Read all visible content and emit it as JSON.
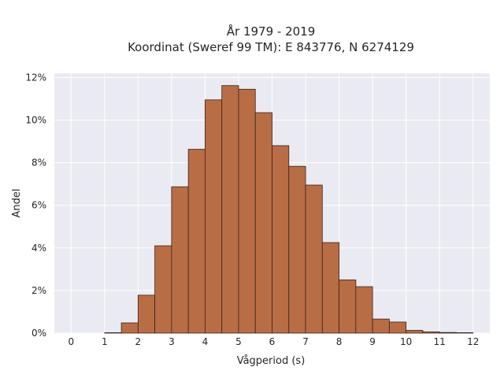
{
  "chart_data": {
    "type": "bar",
    "title": "År 1979 - 2019",
    "subtitle": "Koordinat (Sweref 99 TM): E 843776, N 6274129",
    "xlabel": "Vågperiod (s)",
    "ylabel": "Andel",
    "xlim": [
      -0.5,
      12.5
    ],
    "ylim": [
      0,
      12.2
    ],
    "x_ticks": [
      0,
      1,
      2,
      3,
      4,
      5,
      6,
      7,
      8,
      9,
      10,
      11,
      12
    ],
    "x_tick_labels": [
      "0",
      "1",
      "2",
      "3",
      "4",
      "5",
      "6",
      "7",
      "8",
      "9",
      "10",
      "11",
      "12"
    ],
    "y_ticks": [
      0,
      2,
      4,
      6,
      8,
      10,
      12
    ],
    "y_tick_labels": [
      "0%",
      "2%",
      "4%",
      "6%",
      "8%",
      "10%",
      "12%"
    ],
    "y_unit": "%",
    "grid": true,
    "bin_width": 0.5,
    "bin_starts": [
      1.0,
      1.5,
      2.0,
      2.5,
      3.0,
      3.5,
      4.0,
      4.5,
      5.0,
      5.5,
      6.0,
      6.5,
      7.0,
      7.5,
      8.0,
      8.5,
      9.0,
      9.5,
      10.0,
      10.5,
      11.0,
      11.5
    ],
    "values": [
      0.02,
      0.48,
      1.78,
      4.1,
      6.87,
      8.63,
      10.95,
      11.62,
      11.45,
      10.35,
      8.8,
      7.83,
      6.95,
      4.25,
      2.5,
      2.18,
      0.66,
      0.52,
      0.13,
      0.06,
      0.03,
      0.02
    ],
    "bar_color": "#b96d45",
    "bar_edge_color": "#3a2418",
    "background_color": "#eaeaf2",
    "grid_color": "#ffffff"
  }
}
